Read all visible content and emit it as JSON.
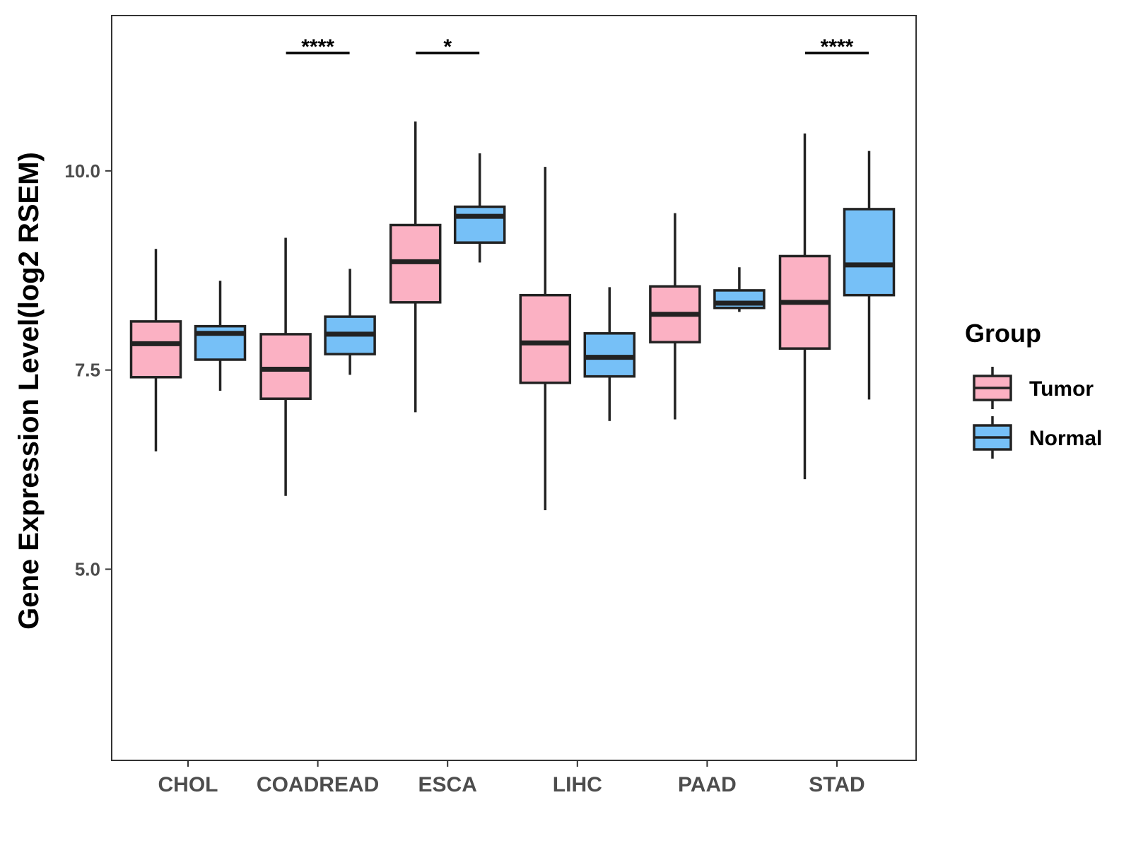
{
  "chart_data": {
    "type": "boxplot",
    "title": "",
    "xlabel": "",
    "ylabel": "Gene Expression Level(log2 RSEM)",
    "ylim": [
      2.6,
      11.95
    ],
    "yticks": [
      {
        "value": 5.0,
        "label": "5.0"
      },
      {
        "value": 7.5,
        "label": "7.5"
      },
      {
        "value": 10.0,
        "label": "10.0"
      }
    ],
    "categories": [
      "CHOL",
      "COADREAD",
      "ESCA",
      "LIHC",
      "PAAD",
      "STAD"
    ],
    "groups": [
      {
        "name": "Tumor",
        "color": "#FBB1C3"
      },
      {
        "name": "Normal",
        "color": "#76C0F7"
      }
    ],
    "legend": {
      "title": "Group",
      "position": "right"
    },
    "grid": false,
    "boxes": [
      {
        "category": "CHOL",
        "group": "Tumor",
        "min": 6.48,
        "q1": 7.41,
        "median": 7.83,
        "q3": 8.11,
        "max": 9.02
      },
      {
        "category": "CHOL",
        "group": "Normal",
        "min": 7.24,
        "q1": 7.63,
        "median": 7.96,
        "q3": 8.05,
        "max": 8.62
      },
      {
        "category": "COADREAD",
        "group": "Tumor",
        "min": 5.92,
        "q1": 7.14,
        "median": 7.51,
        "q3": 7.95,
        "max": 9.16
      },
      {
        "category": "COADREAD",
        "group": "Normal",
        "min": 7.44,
        "q1": 7.7,
        "median": 7.95,
        "q3": 8.17,
        "max": 8.77
      },
      {
        "category": "ESCA",
        "group": "Tumor",
        "min": 6.97,
        "q1": 8.35,
        "median": 8.86,
        "q3": 9.32,
        "max": 10.62
      },
      {
        "category": "ESCA",
        "group": "Normal",
        "min": 8.85,
        "q1": 9.1,
        "median": 9.43,
        "q3": 9.55,
        "max": 10.22
      },
      {
        "category": "LIHC",
        "group": "Tumor",
        "min": 5.74,
        "q1": 7.34,
        "median": 7.84,
        "q3": 8.44,
        "max": 10.05
      },
      {
        "category": "LIHC",
        "group": "Normal",
        "min": 6.86,
        "q1": 7.42,
        "median": 7.66,
        "q3": 7.96,
        "max": 8.54
      },
      {
        "category": "PAAD",
        "group": "Tumor",
        "min": 6.88,
        "q1": 7.85,
        "median": 8.2,
        "q3": 8.55,
        "max": 9.47
      },
      {
        "category": "PAAD",
        "group": "Normal",
        "min": 8.23,
        "q1": 8.28,
        "median": 8.34,
        "q3": 8.5,
        "max": 8.79
      },
      {
        "category": "STAD",
        "group": "Tumor",
        "min": 6.13,
        "q1": 7.77,
        "median": 8.35,
        "q3": 8.93,
        "max": 10.47
      },
      {
        "category": "STAD",
        "group": "Normal",
        "min": 7.13,
        "q1": 8.44,
        "median": 8.82,
        "q3": 9.52,
        "max": 10.25
      }
    ],
    "significance": [
      {
        "category": "COADREAD",
        "label": "****"
      },
      {
        "category": "ESCA",
        "label": "*"
      },
      {
        "category": "STAD",
        "label": "****"
      }
    ]
  }
}
